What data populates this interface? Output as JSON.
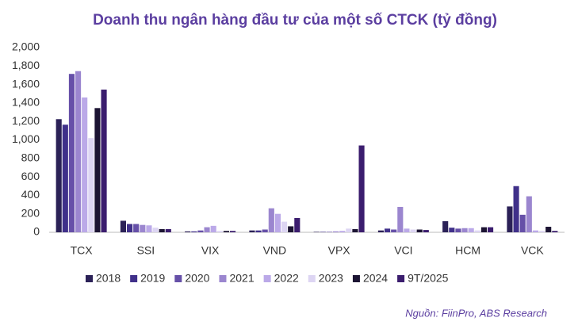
{
  "chart_data": {
    "type": "bar",
    "title": "Doanh thu ngân hàng đầu tư của một số CTCK (tỷ đồng)",
    "source": "Nguồn: FiinPro, ABS Research",
    "categories": [
      "TCX",
      "SSI",
      "VIX",
      "VND",
      "VPX",
      "VCI",
      "HCM",
      "VCK"
    ],
    "series": [
      {
        "name": "2018",
        "color": "#2b2157",
        "values": [
          1225,
          125,
          10,
          20,
          5,
          20,
          120,
          280
        ]
      },
      {
        "name": "2019",
        "color": "#40308a",
        "values": [
          1165,
          90,
          10,
          20,
          5,
          40,
          50,
          500
        ]
      },
      {
        "name": "2020",
        "color": "#6650a8",
        "values": [
          1715,
          90,
          20,
          30,
          5,
          30,
          40,
          190
        ]
      },
      {
        "name": "2021",
        "color": "#9b86cf",
        "values": [
          1745,
          80,
          55,
          260,
          10,
          275,
          45,
          390
        ]
      },
      {
        "name": "2022",
        "color": "#bba9e8",
        "values": [
          1460,
          75,
          70,
          200,
          15,
          40,
          45,
          20
        ]
      },
      {
        "name": "2023",
        "color": "#ddd5f3",
        "values": [
          1020,
          50,
          15,
          115,
          40,
          30,
          20,
          15
        ]
      },
      {
        "name": "2024",
        "color": "#1c1433",
        "values": [
          1345,
          35,
          15,
          65,
          35,
          30,
          55,
          60
        ]
      },
      {
        "name": "9T/2025",
        "color": "#3b1d6e",
        "values": [
          1545,
          35,
          15,
          155,
          940,
          25,
          55,
          15
        ]
      }
    ],
    "ylim": [
      0,
      2000
    ],
    "yticks": [
      0,
      200,
      400,
      600,
      800,
      {
        "value": 1000,
        "label": "1,000"
      },
      {
        "value": 1200,
        "label": "1,200"
      },
      {
        "value": 1400,
        "label": "1,400"
      },
      {
        "value": 1600,
        "label": "1,600"
      },
      {
        "value": 1800,
        "label": "1,800"
      },
      {
        "value": 2000,
        "label": "2,000"
      }
    ]
  }
}
